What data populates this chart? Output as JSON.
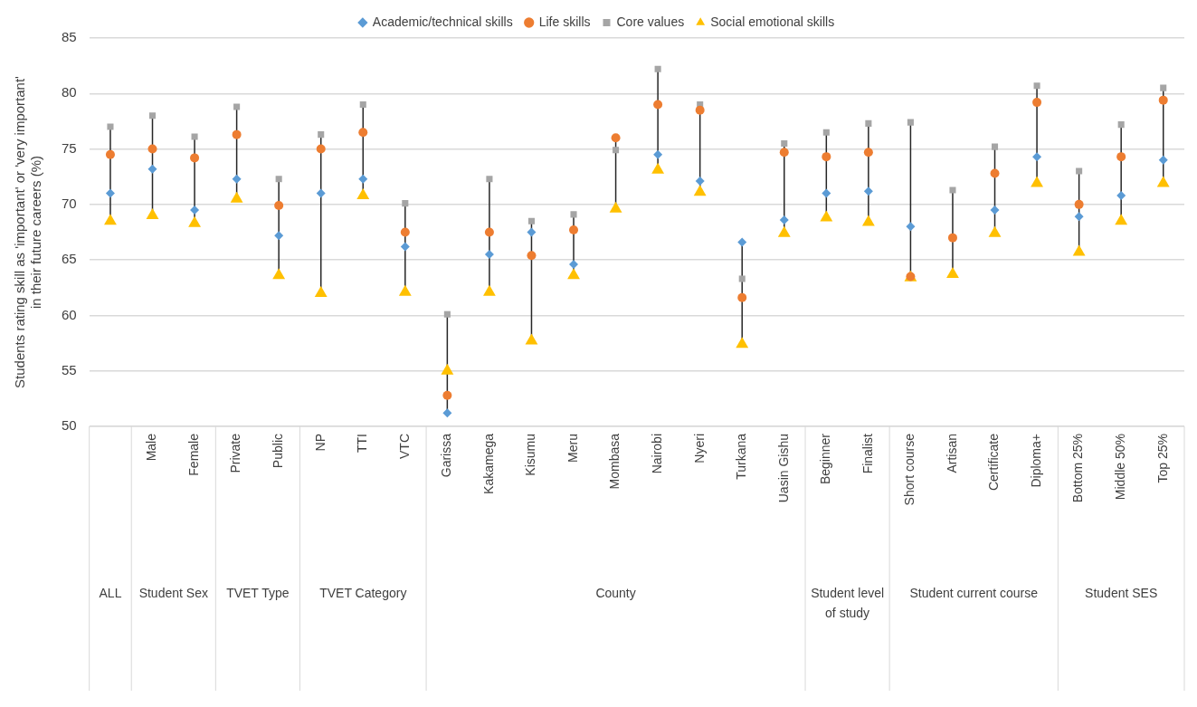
{
  "chart_data": {
    "type": "scatter",
    "ylabel": "Students rating skill as 'important' or 'very important' in their future careers (%)",
    "categories": [
      null,
      "Male",
      "Female",
      "Private",
      "Public",
      "NP",
      "TTI",
      "VTC",
      "Garissa",
      "Kakamega",
      "Kisumu",
      "Meru",
      "Mombasa",
      "Nairobi",
      "Nyeri",
      "Turkana",
      "Uasin Gishu",
      "Beginner",
      "Finalist",
      "Short course",
      "Artisan",
      "Certificate",
      "Diploma+",
      "Bottom 25%",
      "Middle 50%",
      "Top 25%"
    ],
    "series": [
      {
        "name": "Academic/technical skills",
        "color": "#5b9bd5",
        "marker": "diamond",
        "values": [
          71,
          73.2,
          69.5,
          72.3,
          67.2,
          71,
          72.3,
          66.2,
          51.2,
          65.5,
          67.5,
          64.6,
          null,
          74.5,
          72.1,
          66.6,
          68.6,
          71,
          71.2,
          68,
          null,
          69.5,
          74.3,
          68.9,
          70.8,
          74
        ]
      },
      {
        "name": "Life skills",
        "color": "#ed7d31",
        "marker": "circle",
        "values": [
          74.5,
          75,
          74.2,
          76.3,
          69.9,
          75,
          76.5,
          67.5,
          52.8,
          67.5,
          65.4,
          67.7,
          76,
          79,
          78.5,
          61.6,
          74.7,
          74.3,
          74.7,
          63.5,
          67,
          72.8,
          79.2,
          70,
          74.3,
          79.4
        ]
      },
      {
        "name": "Core values",
        "color": "#a5a5a5",
        "marker": "square",
        "values": [
          77,
          78,
          76.1,
          78.8,
          72.3,
          76.3,
          79,
          70.1,
          60.1,
          72.3,
          68.5,
          69.1,
          74.9,
          82.2,
          79,
          63.3,
          75.5,
          76.5,
          77.3,
          77.4,
          71.3,
          75.2,
          80.7,
          73,
          77.2,
          80.5
        ]
      },
      {
        "name": "Social emotional skills",
        "color": "#ffc000",
        "marker": "triangle",
        "values": [
          68.5,
          69,
          68.3,
          70.5,
          63.6,
          62,
          70.8,
          62.1,
          55,
          62.1,
          57.7,
          63.6,
          69.6,
          73.1,
          71.1,
          57.4,
          67.4,
          68.8,
          68.4,
          63.4,
          63.7,
          67.4,
          71.9,
          65.7,
          68.5,
          71.9
        ]
      }
    ],
    "annotations": [
      "ALL",
      "Student Sex",
      "TVET Type",
      "TVET Category",
      "County",
      "Student level of study",
      "Student current course",
      "Student SES"
    ],
    "ylim": [
      50,
      85
    ],
    "yticks": [
      50,
      55,
      60,
      65,
      70,
      75,
      80,
      85
    ],
    "grid": "y",
    "legend": "top",
    "line_style": "none"
  }
}
